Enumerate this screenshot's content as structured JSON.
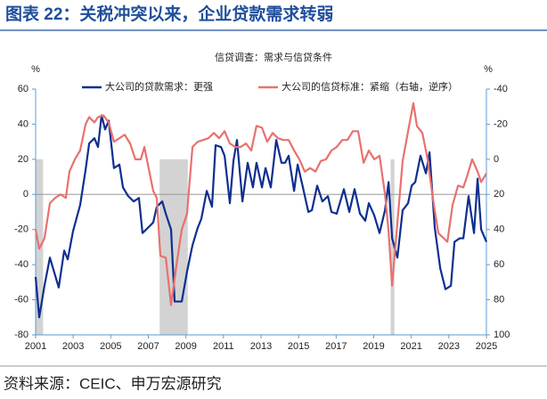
{
  "header": {
    "title": "图表 22：关税冲突以来，企业贷款需求转弱"
  },
  "chart_data": {
    "type": "line",
    "title": "信贷调查：需求与信贷条件",
    "y_unit": "%",
    "y2_unit": "%",
    "xlim": [
      2001,
      2025
    ],
    "xticks": [
      2001,
      2003,
      2005,
      2007,
      2009,
      2011,
      2013,
      2015,
      2017,
      2019,
      2021,
      2023,
      2025
    ],
    "ylim": [
      -80,
      60
    ],
    "yticks": [
      60,
      40,
      20,
      0,
      -20,
      -40,
      -60,
      -80
    ],
    "y2lim": [
      -40,
      100
    ],
    "y2ticks": [
      -40,
      -20,
      0,
      20,
      40,
      60,
      80,
      100
    ],
    "y2_reversed": true,
    "shaded_top": 20,
    "shaded": [
      [
        2001.0,
        2001.4
      ],
      [
        2007.6,
        2009.1
      ],
      [
        2019.9,
        2020.1
      ]
    ],
    "shaded_color": "#d3d3d3",
    "series": [
      {
        "name": "大公司的贷款需求：更强",
        "color": "#0e2f8e",
        "axis": "y",
        "x": [
          2001.0,
          2001.19,
          2001.47,
          2001.76,
          2002.23,
          2002.52,
          2002.71,
          2002.99,
          2003.37,
          2003.66,
          2003.85,
          2004.13,
          2004.32,
          2004.51,
          2004.7,
          2004.89,
          2005.17,
          2005.46,
          2005.65,
          2005.93,
          2006.22,
          2006.5,
          2006.69,
          2006.98,
          2007.26,
          2007.45,
          2007.74,
          2007.93,
          2008.21,
          2008.4,
          2008.78,
          2009.06,
          2009.35,
          2009.63,
          2009.82,
          2010.11,
          2010.39,
          2010.58,
          2010.87,
          2011.06,
          2011.34,
          2011.53,
          2011.72,
          2012.01,
          2012.29,
          2012.57,
          2012.76,
          2013.05,
          2013.24,
          2013.52,
          2013.81,
          2014.09,
          2014.28,
          2014.47,
          2014.76,
          2014.95,
          2015.23,
          2015.52,
          2015.71,
          2015.99,
          2016.27,
          2016.56,
          2016.75,
          2017.03,
          2017.41,
          2017.7,
          2017.98,
          2018.27,
          2018.55,
          2018.74,
          2019.03,
          2019.31,
          2019.6,
          2019.79,
          2019.98,
          2020.26,
          2020.54,
          2020.83,
          2021.02,
          2021.21,
          2021.49,
          2021.78,
          2021.97,
          2022.25,
          2022.54,
          2022.82,
          2023.11,
          2023.3,
          2023.58,
          2023.77,
          2024.05,
          2024.34,
          2024.53,
          2024.72,
          2025.0
        ],
        "values": [
          -47,
          -70,
          -52,
          -36,
          -53,
          -32,
          -37,
          -21,
          -6,
          14,
          29,
          32,
          27,
          45,
          37,
          42,
          15,
          17,
          4,
          -1,
          -4,
          -2,
          -22,
          -19,
          -16,
          -7,
          -4,
          -11,
          -20,
          -61,
          -61,
          -44,
          -29,
          -19,
          -14,
          2,
          -7,
          28,
          27,
          22,
          -5,
          19,
          31,
          -4,
          18,
          4,
          18,
          4,
          15,
          4,
          31,
          18,
          18,
          22,
          2,
          17,
          4,
          -10,
          -9,
          5,
          -4,
          -1,
          -10,
          -11,
          3,
          -10,
          3,
          -11,
          -15,
          -5,
          -12,
          -22,
          -9,
          7,
          -25,
          -36,
          -9,
          -5,
          5,
          7,
          22,
          12,
          24,
          -19,
          -42,
          -54,
          -52,
          -27,
          -25,
          -25,
          -1,
          -22,
          9,
          -20,
          -27
        ]
      },
      {
        "name": "大公司的信贷标准：紧缩（右轴，逆序）",
        "color": "#e8716f",
        "axis": "y2",
        "x": [
          2001.0,
          2001.19,
          2001.47,
          2001.76,
          2002.04,
          2002.33,
          2002.61,
          2002.8,
          2003.09,
          2003.37,
          2003.66,
          2003.85,
          2004.13,
          2004.32,
          2004.61,
          2004.89,
          2005.17,
          2005.46,
          2005.74,
          2006.03,
          2006.31,
          2006.6,
          2006.79,
          2007.07,
          2007.26,
          2007.45,
          2007.64,
          2007.93,
          2008.21,
          2008.5,
          2008.78,
          2009.06,
          2009.35,
          2009.63,
          2009.92,
          2010.2,
          2010.49,
          2010.77,
          2011.06,
          2011.34,
          2011.63,
          2011.91,
          2012.2,
          2012.48,
          2012.76,
          2013.05,
          2013.33,
          2013.62,
          2013.9,
          2014.19,
          2014.47,
          2014.76,
          2015.04,
          2015.33,
          2015.61,
          2015.9,
          2016.18,
          2016.46,
          2016.75,
          2017.03,
          2017.32,
          2017.6,
          2017.89,
          2018.17,
          2018.46,
          2018.74,
          2019.03,
          2019.31,
          2019.6,
          2019.79,
          2019.98,
          2020.26,
          2020.54,
          2020.83,
          2021.11,
          2021.3,
          2021.59,
          2021.87,
          2022.16,
          2022.44,
          2022.73,
          2022.92,
          2023.2,
          2023.49,
          2023.77,
          2023.96,
          2024.24,
          2024.53,
          2024.72,
          2025.0
        ],
        "values": [
          40,
          51,
          45,
          25,
          22,
          20,
          22,
          7,
          0,
          -5,
          -20,
          -24,
          -21,
          -24,
          -25,
          -21,
          -10,
          -12,
          -14,
          -9,
          0,
          0,
          -7,
          8,
          18,
          22,
          55,
          56,
          83,
          60,
          40,
          31,
          -7,
          -10,
          -11,
          -12,
          -15,
          -12,
          -16,
          -9,
          -7,
          -7,
          -9,
          -5,
          -19,
          -18,
          -10,
          -15,
          -12,
          -11,
          -11,
          -5,
          0,
          7,
          5,
          7,
          1,
          0,
          -5,
          -7,
          -11,
          -11,
          -16,
          -16,
          2,
          -5,
          0,
          -2,
          20,
          41,
          72,
          36,
          1,
          -16,
          -32,
          -19,
          -15,
          0,
          23,
          42,
          45,
          47,
          26,
          15,
          16,
          10,
          0,
          7,
          13,
          8
        ]
      }
    ]
  },
  "footer": {
    "source": "资料来源：CEIC、申万宏源研究"
  }
}
